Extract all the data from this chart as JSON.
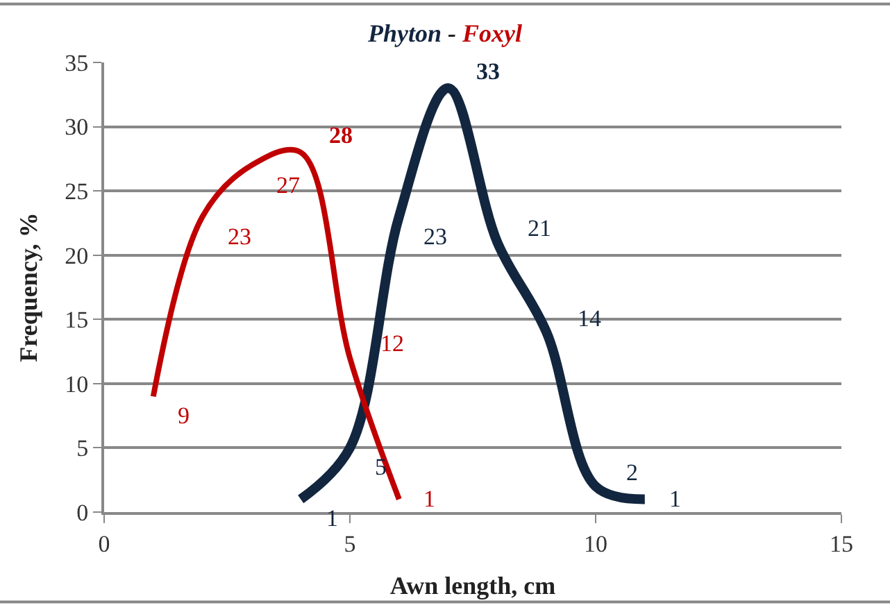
{
  "chart_data": {
    "type": "line",
    "title": "Phyton - Foxyl",
    "xlabel": "Awn length, cm",
    "ylabel": "Frequency, %",
    "xlim": [
      0,
      15
    ],
    "xticks": [
      0,
      5,
      10,
      15
    ],
    "ylim": [
      0,
      35
    ],
    "yticks": [
      0,
      5,
      10,
      15,
      20,
      25,
      30,
      35
    ],
    "grid": "y",
    "legend": false,
    "data_labels": true,
    "marker": "none",
    "series": [
      {
        "color": "#13263f",
        "x": [
          4,
          5,
          6,
          7,
          8,
          9,
          10,
          11
        ],
        "values": [
          1,
          5,
          23,
          33,
          21,
          14,
          2,
          1
        ]
      },
      {
        "color": "#c00000",
        "x": [
          1,
          2,
          3,
          4,
          5,
          6
        ],
        "values": [
          9,
          23,
          27,
          28,
          12,
          1
        ]
      }
    ]
  }
}
